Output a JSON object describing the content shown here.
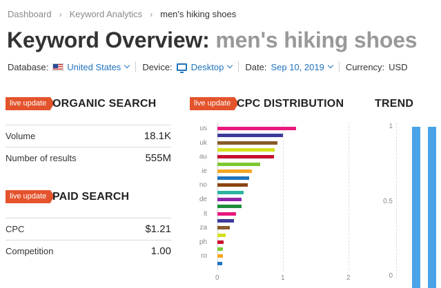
{
  "breadcrumb": {
    "items": [
      "Dashboard",
      "Keyword Analytics"
    ],
    "current": "men's hiking shoes"
  },
  "title": {
    "prefix": "Keyword Overview:",
    "keyword": "men's hiking shoes"
  },
  "filters": {
    "database_label": "Database:",
    "database_value": "United States",
    "device_label": "Device:",
    "device_value": "Desktop",
    "date_label": "Date:",
    "date_value": "Sep 10, 2019",
    "currency_label": "Currency:",
    "currency_value": "USD"
  },
  "badge_text": "live update",
  "organic": {
    "title": "ORGANIC SEARCH",
    "rows": [
      {
        "label": "Volume",
        "value": "18.1K"
      },
      {
        "label": "Number of results",
        "value": "555M"
      }
    ]
  },
  "paid": {
    "title": "PAID SEARCH",
    "rows": [
      {
        "label": "CPC",
        "value": "$1.21"
      },
      {
        "label": "Competition",
        "value": "1.00"
      }
    ]
  },
  "cpc": {
    "title": "CPC DISTRIBUTION"
  },
  "trend": {
    "title": "TREND",
    "ticks": [
      "1",
      "0.5",
      "0"
    ],
    "bar_color": "#4aa3e6"
  },
  "colors": {
    "accent": "#e4532b",
    "link": "#1e73be"
  },
  "chart_data": {
    "type": "bar",
    "orientation": "horizontal",
    "visible_category_labels": [
      "us",
      "uk",
      "au",
      "ie",
      "no",
      "de",
      "it",
      "za",
      "ph",
      "ro"
    ],
    "x_ticks": [
      "0",
      "1",
      "2"
    ],
    "xlim": [
      0,
      2
    ],
    "grid": true,
    "bars": [
      {
        "value": 1.2,
        "color": "#e8197d"
      },
      {
        "value": 1.0,
        "color": "#3b3a9c"
      },
      {
        "value": 0.92,
        "color": "#8a5a2b"
      },
      {
        "value": 0.87,
        "color": "#d4e01e"
      },
      {
        "value": 0.86,
        "color": "#c8102e"
      },
      {
        "value": 0.65,
        "color": "#7dc832"
      },
      {
        "value": 0.53,
        "color": "#f5a623"
      },
      {
        "value": 0.48,
        "color": "#1e73be"
      },
      {
        "value": 0.46,
        "color": "#8b4513"
      },
      {
        "value": 0.4,
        "color": "#2bb5a0"
      },
      {
        "value": 0.37,
        "color": "#8e24aa"
      },
      {
        "value": 0.37,
        "color": "#1e8c3a"
      },
      {
        "value": 0.28,
        "color": "#e8197d"
      },
      {
        "value": 0.25,
        "color": "#3b3a9c"
      },
      {
        "value": 0.19,
        "color": "#8a5a2b"
      },
      {
        "value": 0.13,
        "color": "#d4e01e"
      },
      {
        "value": 0.09,
        "color": "#c8102e"
      },
      {
        "value": 0.08,
        "color": "#7dc832"
      },
      {
        "value": 0.08,
        "color": "#f5a623"
      },
      {
        "value": 0.07,
        "color": "#1e73be"
      }
    ],
    "trend_values": [
      1,
      1
    ]
  }
}
